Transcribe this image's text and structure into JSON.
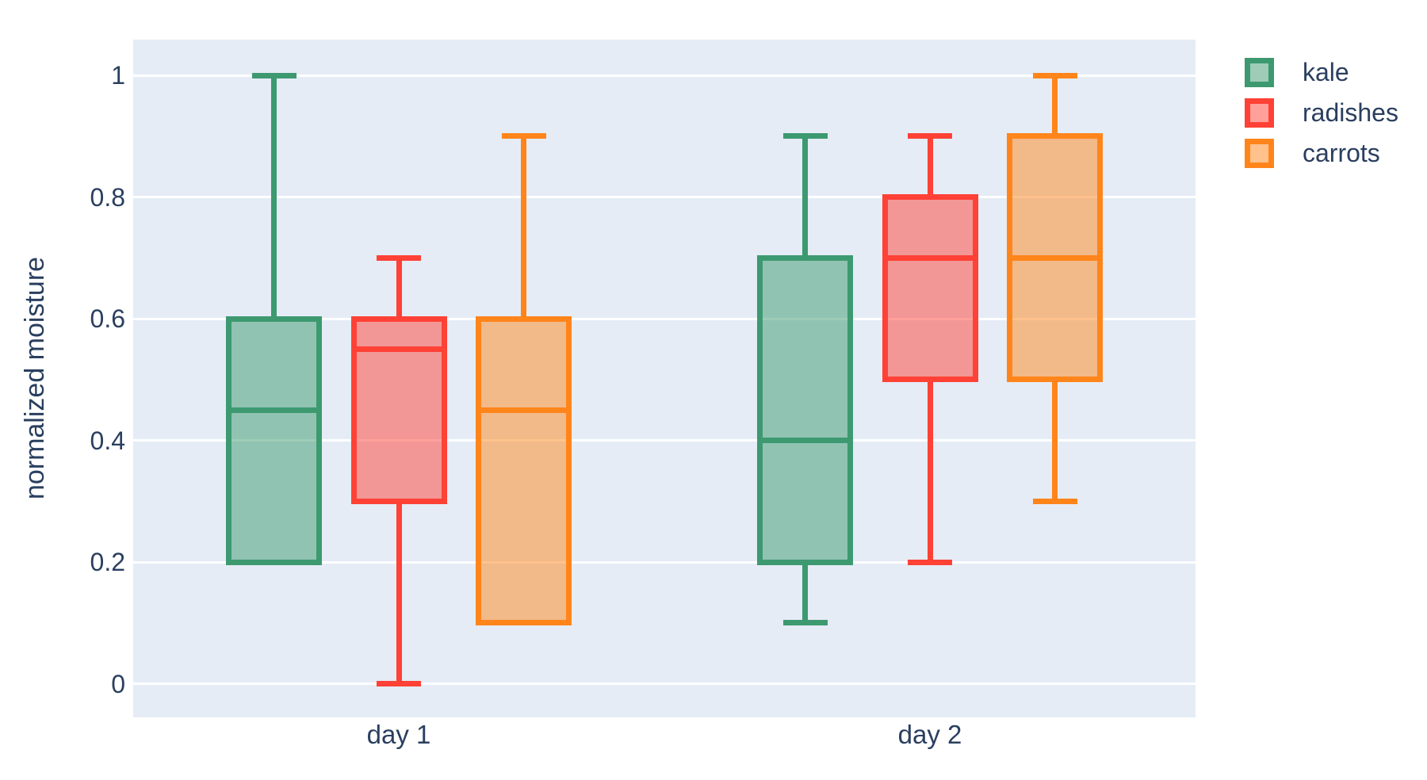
{
  "figure": {
    "background": "#ffffff",
    "plot_background": "#e5ecf6",
    "grid_color": "#ffffff",
    "text_color": "#2a3f5f"
  },
  "chart_data": {
    "type": "box",
    "boxmode": "group",
    "orientation": "vertical",
    "title": "",
    "xlabel": "",
    "ylabel": "normalized moisture",
    "categories": [
      "day 1",
      "day 2"
    ],
    "yaxis": {
      "tick_values": [
        0,
        0.2,
        0.4,
        0.6,
        0.8,
        1
      ],
      "tick_labels": [
        "0",
        "0.2",
        "0.4",
        "0.6",
        "0.8",
        "1"
      ],
      "range": [
        -0.06,
        1.06
      ],
      "grid": true
    },
    "legend": {
      "position": "top-right",
      "entries": [
        "kale",
        "radishes",
        "carrots"
      ]
    },
    "series": [
      {
        "name": "kale",
        "color": "#3D9970",
        "boxes": [
          {
            "category": "day 1",
            "min": 0.2,
            "q1": 0.2,
            "median": 0.45,
            "q3": 0.6,
            "max": 1.0
          },
          {
            "category": "day 2",
            "min": 0.1,
            "q1": 0.2,
            "median": 0.4,
            "q3": 0.7,
            "max": 0.9
          }
        ]
      },
      {
        "name": "radishes",
        "color": "#FF4136",
        "boxes": [
          {
            "category": "day 1",
            "min": 0.0,
            "q1": 0.3,
            "median": 0.55,
            "q3": 0.6,
            "max": 0.7
          },
          {
            "category": "day 2",
            "min": 0.2,
            "q1": 0.5,
            "median": 0.7,
            "q3": 0.8,
            "max": 0.9
          }
        ]
      },
      {
        "name": "carrots",
        "color": "#FF851B",
        "boxes": [
          {
            "category": "day 1",
            "min": 0.1,
            "q1": 0.1,
            "median": 0.45,
            "q3": 0.6,
            "max": 0.9
          },
          {
            "category": "day 2",
            "min": 0.3,
            "q1": 0.5,
            "median": 0.7,
            "q3": 0.9,
            "max": 1.0
          }
        ]
      }
    ]
  }
}
